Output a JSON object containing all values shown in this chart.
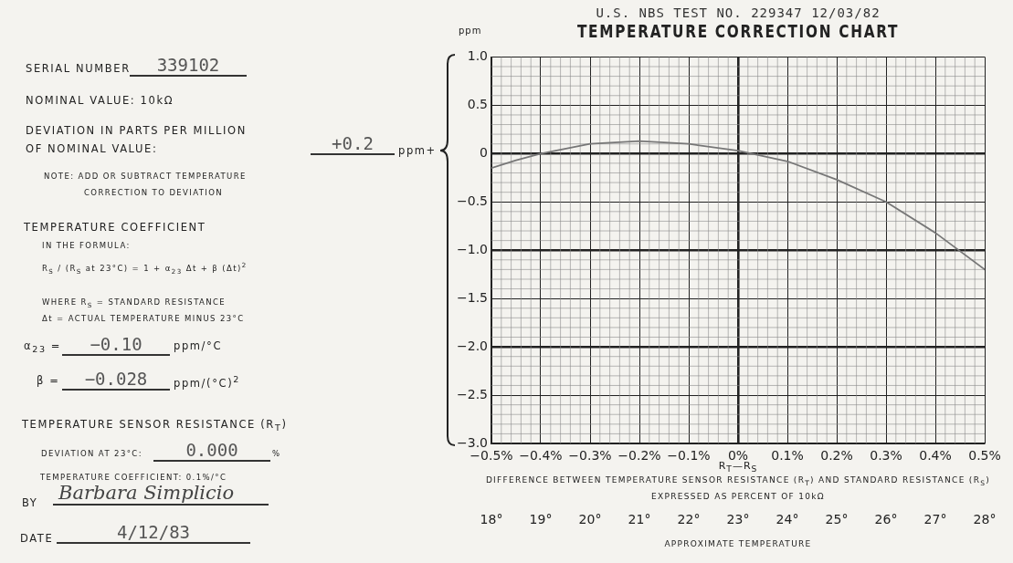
{
  "chart_data": [
    {
      "type": "other",
      "annotations": [
        "SERIAL NUMBER",
        "339102",
        "NOMINAL VALUE: 10kΩ",
        "DEVIATION IN PARTS PER MILLION",
        "OF NOMINAL VALUE:",
        "+0.2",
        "ppm+",
        "NOTE:  ADD OR SUBTRACT TEMPERATURE",
        "CORRECTION TO DEVIATION",
        "TEMPERATURE COEFFICIENT",
        "IN THE FORMULA:",
        "R$_{S}$ / (R$_{S}$ at 23°C) = 1 + α$_{23}$ Δt + β (Δt)$^{2}$",
        "WHERE R$_{S}$ = STANDARD RESISTANCE",
        "Δt = ACTUAL TEMPERATURE MINUS 23°C",
        "α$_{23}$ =",
        "−0.10",
        "ppm/°C",
        "β =",
        "−0.028",
        "ppm/(°C)$^{2}$",
        "TEMPERATURE SENSOR RESISTANCE (R$_{T}$)",
        "DEVIATION AT 23°C:",
        "0.000",
        "%",
        "TEMPERATURE COEFFICIENT: 0.1%/°C",
        "BY",
        "Barbara Simplicio",
        "DATE",
        "4/12/83"
      ]
    },
    {
      "type": "line",
      "title": "TEMPERATURE CORRECTION CHART",
      "subtitle": "U.S. NBS TEST NO. 229347 12/03/82",
      "ylabel": "ppm",
      "xlabel": "R$_{T}$—R$_{S}$",
      "x2label": "APPROXIMATE TEMPERATURE",
      "annotations": [
        "DIFFERENCE BETWEEN TEMPERATURE SENSOR RESISTANCE (R$_{T}$) AND STANDARD RESISTANCE (R$_{S}$)",
        "EXPRESSED AS PERCENT OF 10kΩ"
      ],
      "x": [
        -0.5,
        -0.45,
        -0.4,
        -0.3,
        -0.2,
        -0.1,
        0,
        0.1,
        0.2,
        0.3,
        0.4,
        0.5
      ],
      "values": [
        -0.15,
        -0.07,
        0.0,
        0.1,
        0.13,
        0.1,
        0.03,
        -0.08,
        -0.27,
        -0.5,
        -0.82,
        -1.2
      ],
      "color": "#777777",
      "marker": "none",
      "line_style": "solid",
      "grid": true,
      "xlim": [
        -0.5,
        0.5
      ],
      "xticks": [
        {
          "value": -0.5,
          "label": "−0.5%"
        },
        {
          "value": -0.4,
          "label": "−0.4%"
        },
        {
          "value": -0.3,
          "label": "−0.3%"
        },
        {
          "value": -0.2,
          "label": "−0.2%"
        },
        {
          "value": -0.1,
          "label": "−0.1%"
        },
        {
          "value": 0,
          "label": "0%"
        },
        {
          "value": 0.1,
          "label": "0.1%"
        },
        {
          "value": 0.2,
          "label": "0.2%"
        },
        {
          "value": 0.3,
          "label": "0.3%"
        },
        {
          "value": 0.4,
          "label": "0.4%"
        },
        {
          "value": 0.5,
          "label": "0.5%"
        }
      ],
      "ylim": [
        -3,
        1
      ],
      "yticks": [
        {
          "value": 1,
          "label": "1.0"
        },
        {
          "value": 0.5,
          "label": "0.5"
        },
        0,
        {
          "value": -0.5,
          "label": "−0.5"
        },
        {
          "value": -1,
          "label": "−1.0"
        },
        {
          "value": -1.5,
          "label": "−1.5"
        },
        {
          "value": -2,
          "label": "−2.0"
        },
        {
          "value": -2.5,
          "label": "−2.5"
        },
        {
          "value": -3,
          "label": "−3.0"
        }
      ],
      "x2lim": [
        18,
        28
      ],
      "x2ticks": [
        {
          "value": 18,
          "label": "18°"
        },
        {
          "value": 19,
          "label": "19°"
        },
        {
          "value": 20,
          "label": "20°"
        },
        {
          "value": 21,
          "label": "21°"
        },
        {
          "value": 22,
          "label": "22°"
        },
        {
          "value": 23,
          "label": "23°"
        },
        {
          "value": 24,
          "label": "24°"
        },
        {
          "value": 25,
          "label": "25°"
        },
        {
          "value": 26,
          "label": "26°"
        },
        {
          "value": 27,
          "label": "27°"
        },
        {
          "value": 28,
          "label": "28°"
        }
      ]
    }
  ]
}
